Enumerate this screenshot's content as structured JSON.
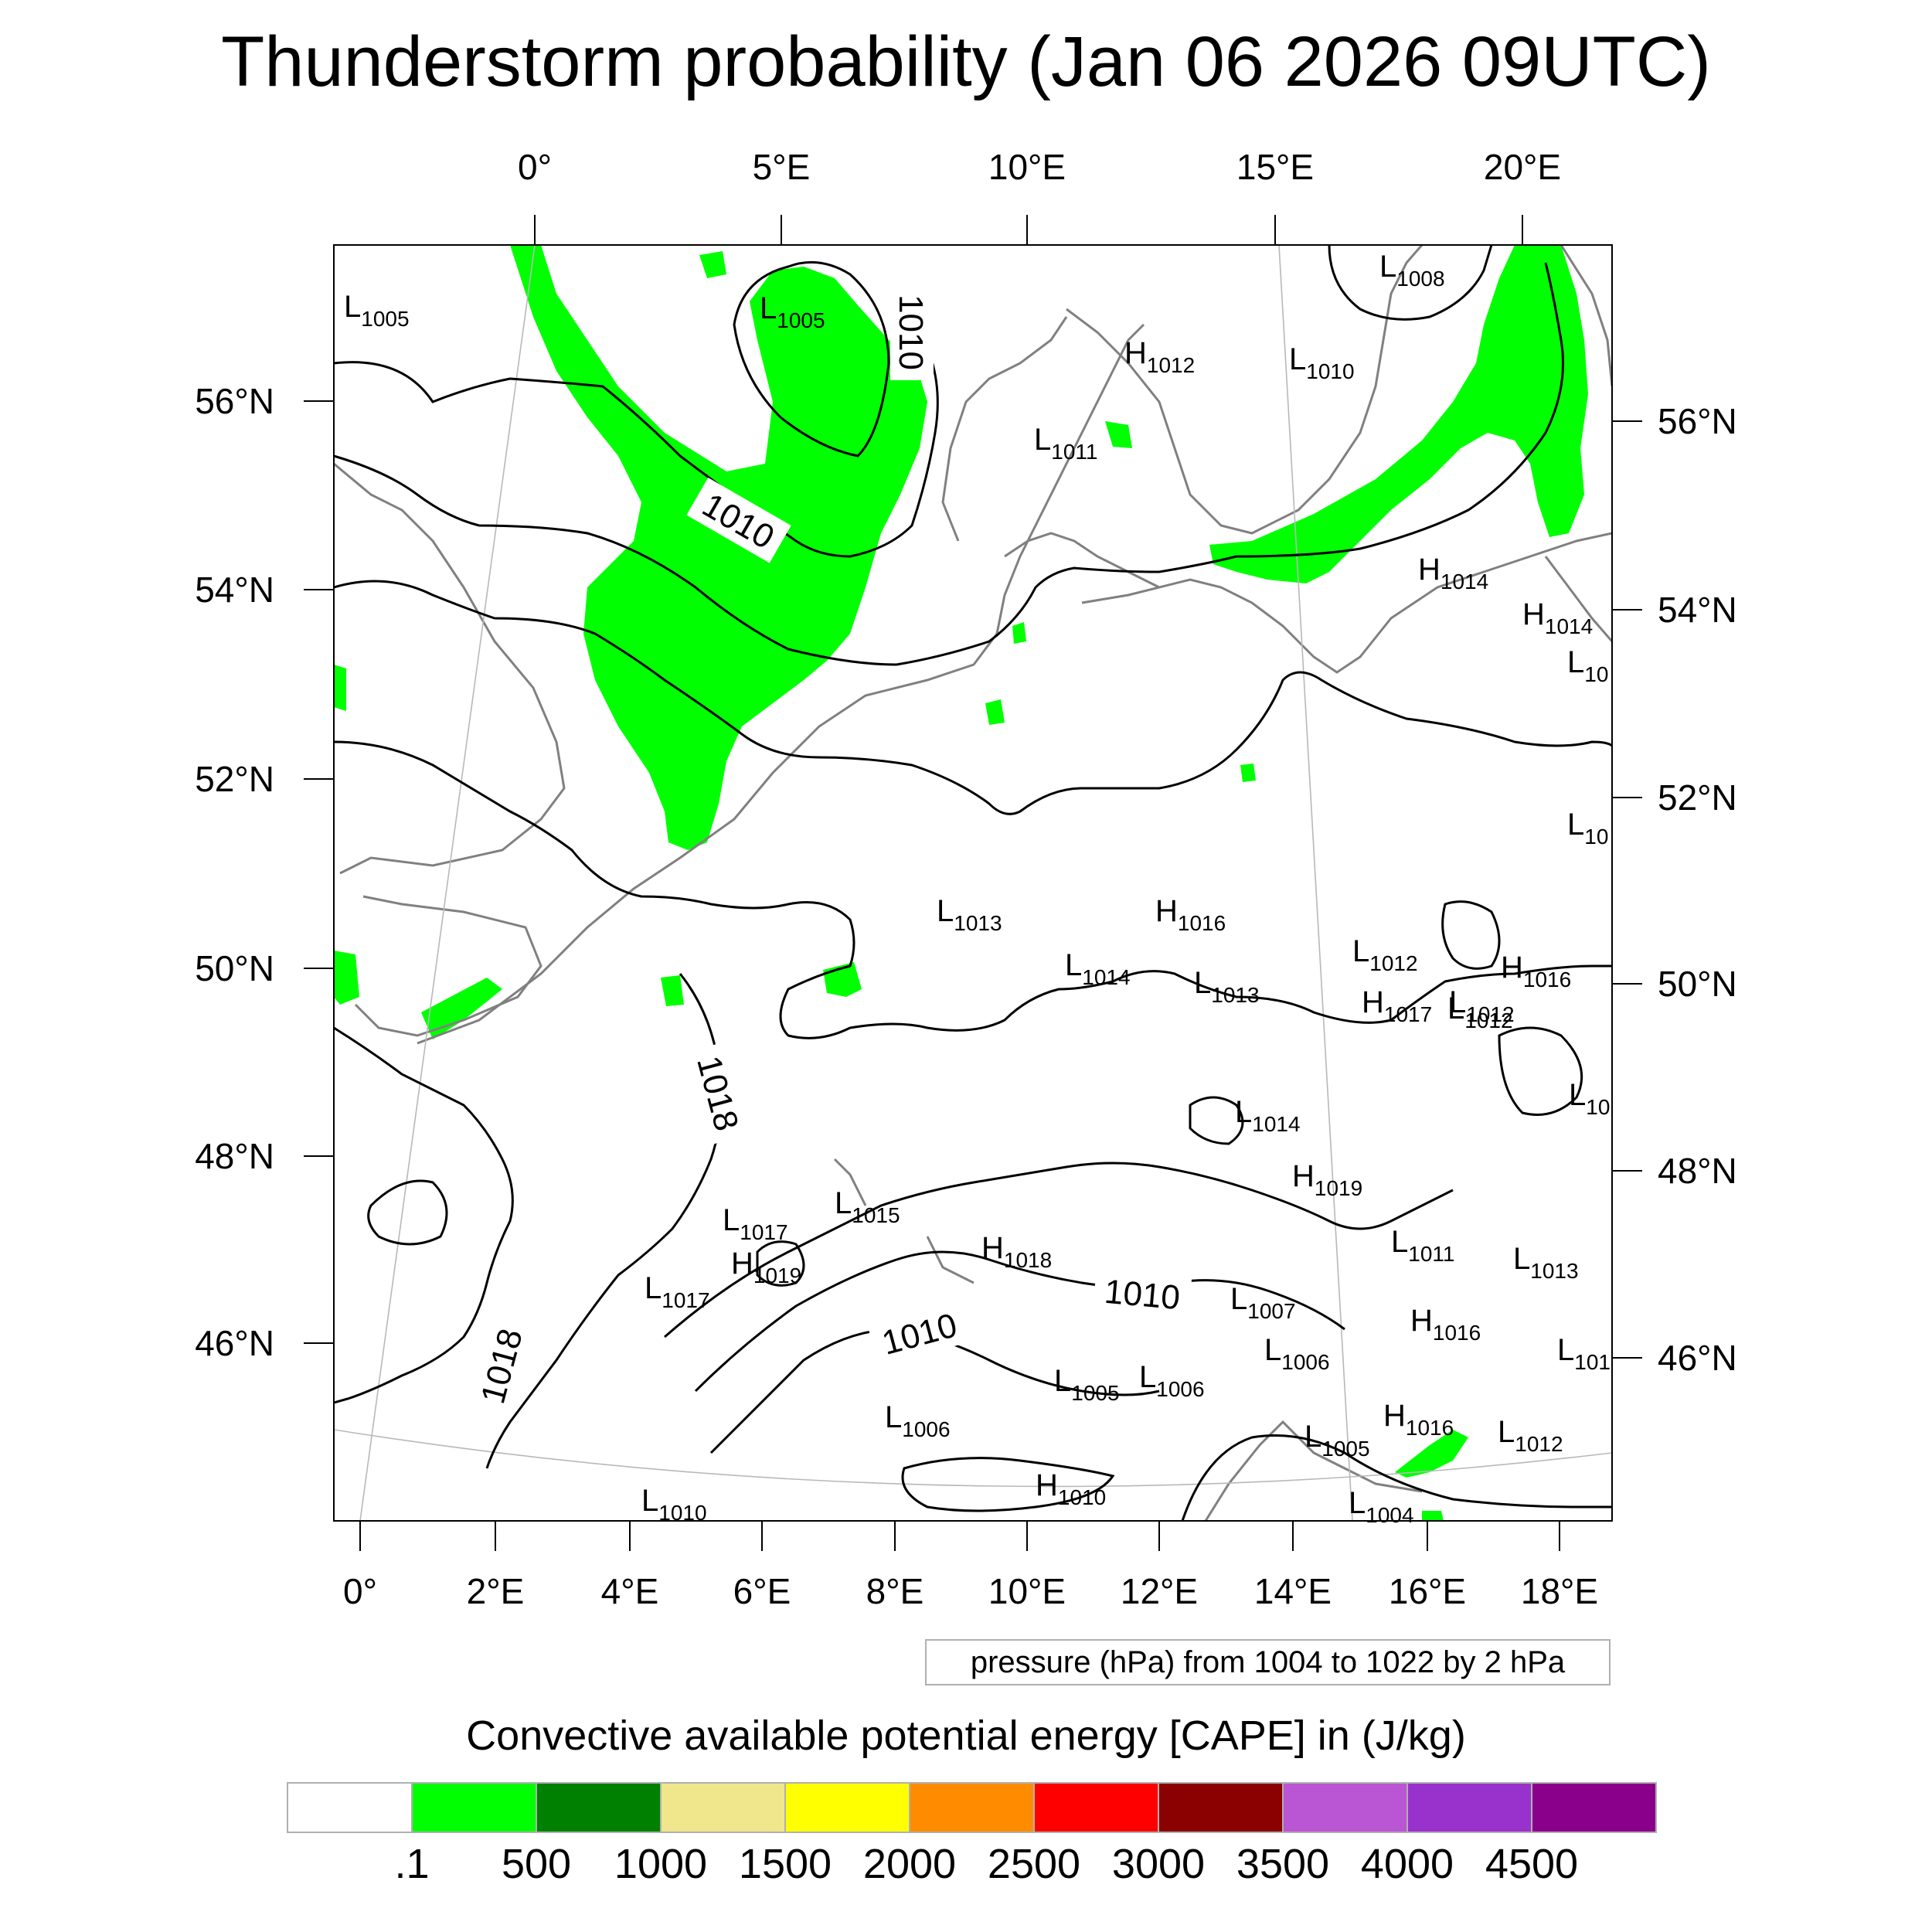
{
  "title": "Thunderstorm probability (Jan 06 2026 09UTC)",
  "axes": {
    "top_lon_labels": [
      "0°",
      "5°E",
      "10°E",
      "15°E",
      "20°E"
    ],
    "bottom_lon_labels": [
      "0°",
      "2°E",
      "4°E",
      "6°E",
      "8°E",
      "10°E",
      "12°E",
      "14°E",
      "16°E",
      "18°E"
    ],
    "left_lat_labels": [
      "56°N",
      "54°N",
      "52°N",
      "50°N",
      "48°N",
      "46°N"
    ],
    "right_lat_labels": [
      "56°N",
      "54°N",
      "52°N",
      "50°N",
      "48°N",
      "46°N"
    ]
  },
  "pressure_note": "pressure (hPa) from 1004 to 1022 by 2 hPa",
  "contour_labels": [
    "1010",
    "1010",
    "1018",
    "1018",
    "1010",
    "1010"
  ],
  "pressure_centers": [
    {
      "kind": "L",
      "value": "1005"
    },
    {
      "kind": "L",
      "value": "1005"
    },
    {
      "kind": "L",
      "value": "1008"
    },
    {
      "kind": "H",
      "value": "1012"
    },
    {
      "kind": "L",
      "value": "1010"
    },
    {
      "kind": "L",
      "value": "1011"
    },
    {
      "kind": "H",
      "value": "1014"
    },
    {
      "kind": "H",
      "value": "1014"
    },
    {
      "kind": "L",
      "value": "10"
    },
    {
      "kind": "L",
      "value": "10"
    },
    {
      "kind": "L",
      "value": "1012"
    },
    {
      "kind": "L",
      "value": "1013"
    },
    {
      "kind": "H",
      "value": "1016"
    },
    {
      "kind": "L",
      "value": "1014"
    },
    {
      "kind": "L",
      "value": "1013"
    },
    {
      "kind": "L",
      "value": "1012"
    },
    {
      "kind": "H",
      "value": "1017"
    },
    {
      "kind": "L",
      "value": "1012"
    },
    {
      "kind": "H",
      "value": "1016"
    },
    {
      "kind": "L",
      "value": "10"
    },
    {
      "kind": "L",
      "value": "1014"
    },
    {
      "kind": "H",
      "value": "1019"
    },
    {
      "kind": "L",
      "value": "1017"
    },
    {
      "kind": "L",
      "value": "1015"
    },
    {
      "kind": "H",
      "value": "1019"
    },
    {
      "kind": "H",
      "value": "1018"
    },
    {
      "kind": "L",
      "value": "1011"
    },
    {
      "kind": "L",
      "value": "1013"
    },
    {
      "kind": "L",
      "value": "1017"
    },
    {
      "kind": "L",
      "value": "1007"
    },
    {
      "kind": "H",
      "value": "1016"
    },
    {
      "kind": "L",
      "value": "101"
    },
    {
      "kind": "L",
      "value": "1006"
    },
    {
      "kind": "L",
      "value": "1005"
    },
    {
      "kind": "L",
      "value": "1006"
    },
    {
      "kind": "L",
      "value": "1006"
    },
    {
      "kind": "H",
      "value": "1016"
    },
    {
      "kind": "L",
      "value": "1012"
    },
    {
      "kind": "L",
      "value": "1005"
    },
    {
      "kind": "H",
      "value": "1010"
    },
    {
      "kind": "L",
      "value": "1010"
    },
    {
      "kind": "L",
      "value": "1004"
    }
  ],
  "legend": {
    "title": "Convective available potential energy [CAPE] in (J/kg)",
    "colors": [
      "#ffffff",
      "#00ff00",
      "#008000",
      "#f0e68c",
      "#ffff00",
      "#ff8c00",
      "#ff0000",
      "#8b0000",
      "#ba55d3",
      "#9932cc",
      "#8b008b"
    ],
    "labels": [
      ".1",
      "500",
      "1000",
      "1500",
      "2000",
      "2500",
      "3000",
      "3500",
      "4000",
      "4500"
    ]
  }
}
